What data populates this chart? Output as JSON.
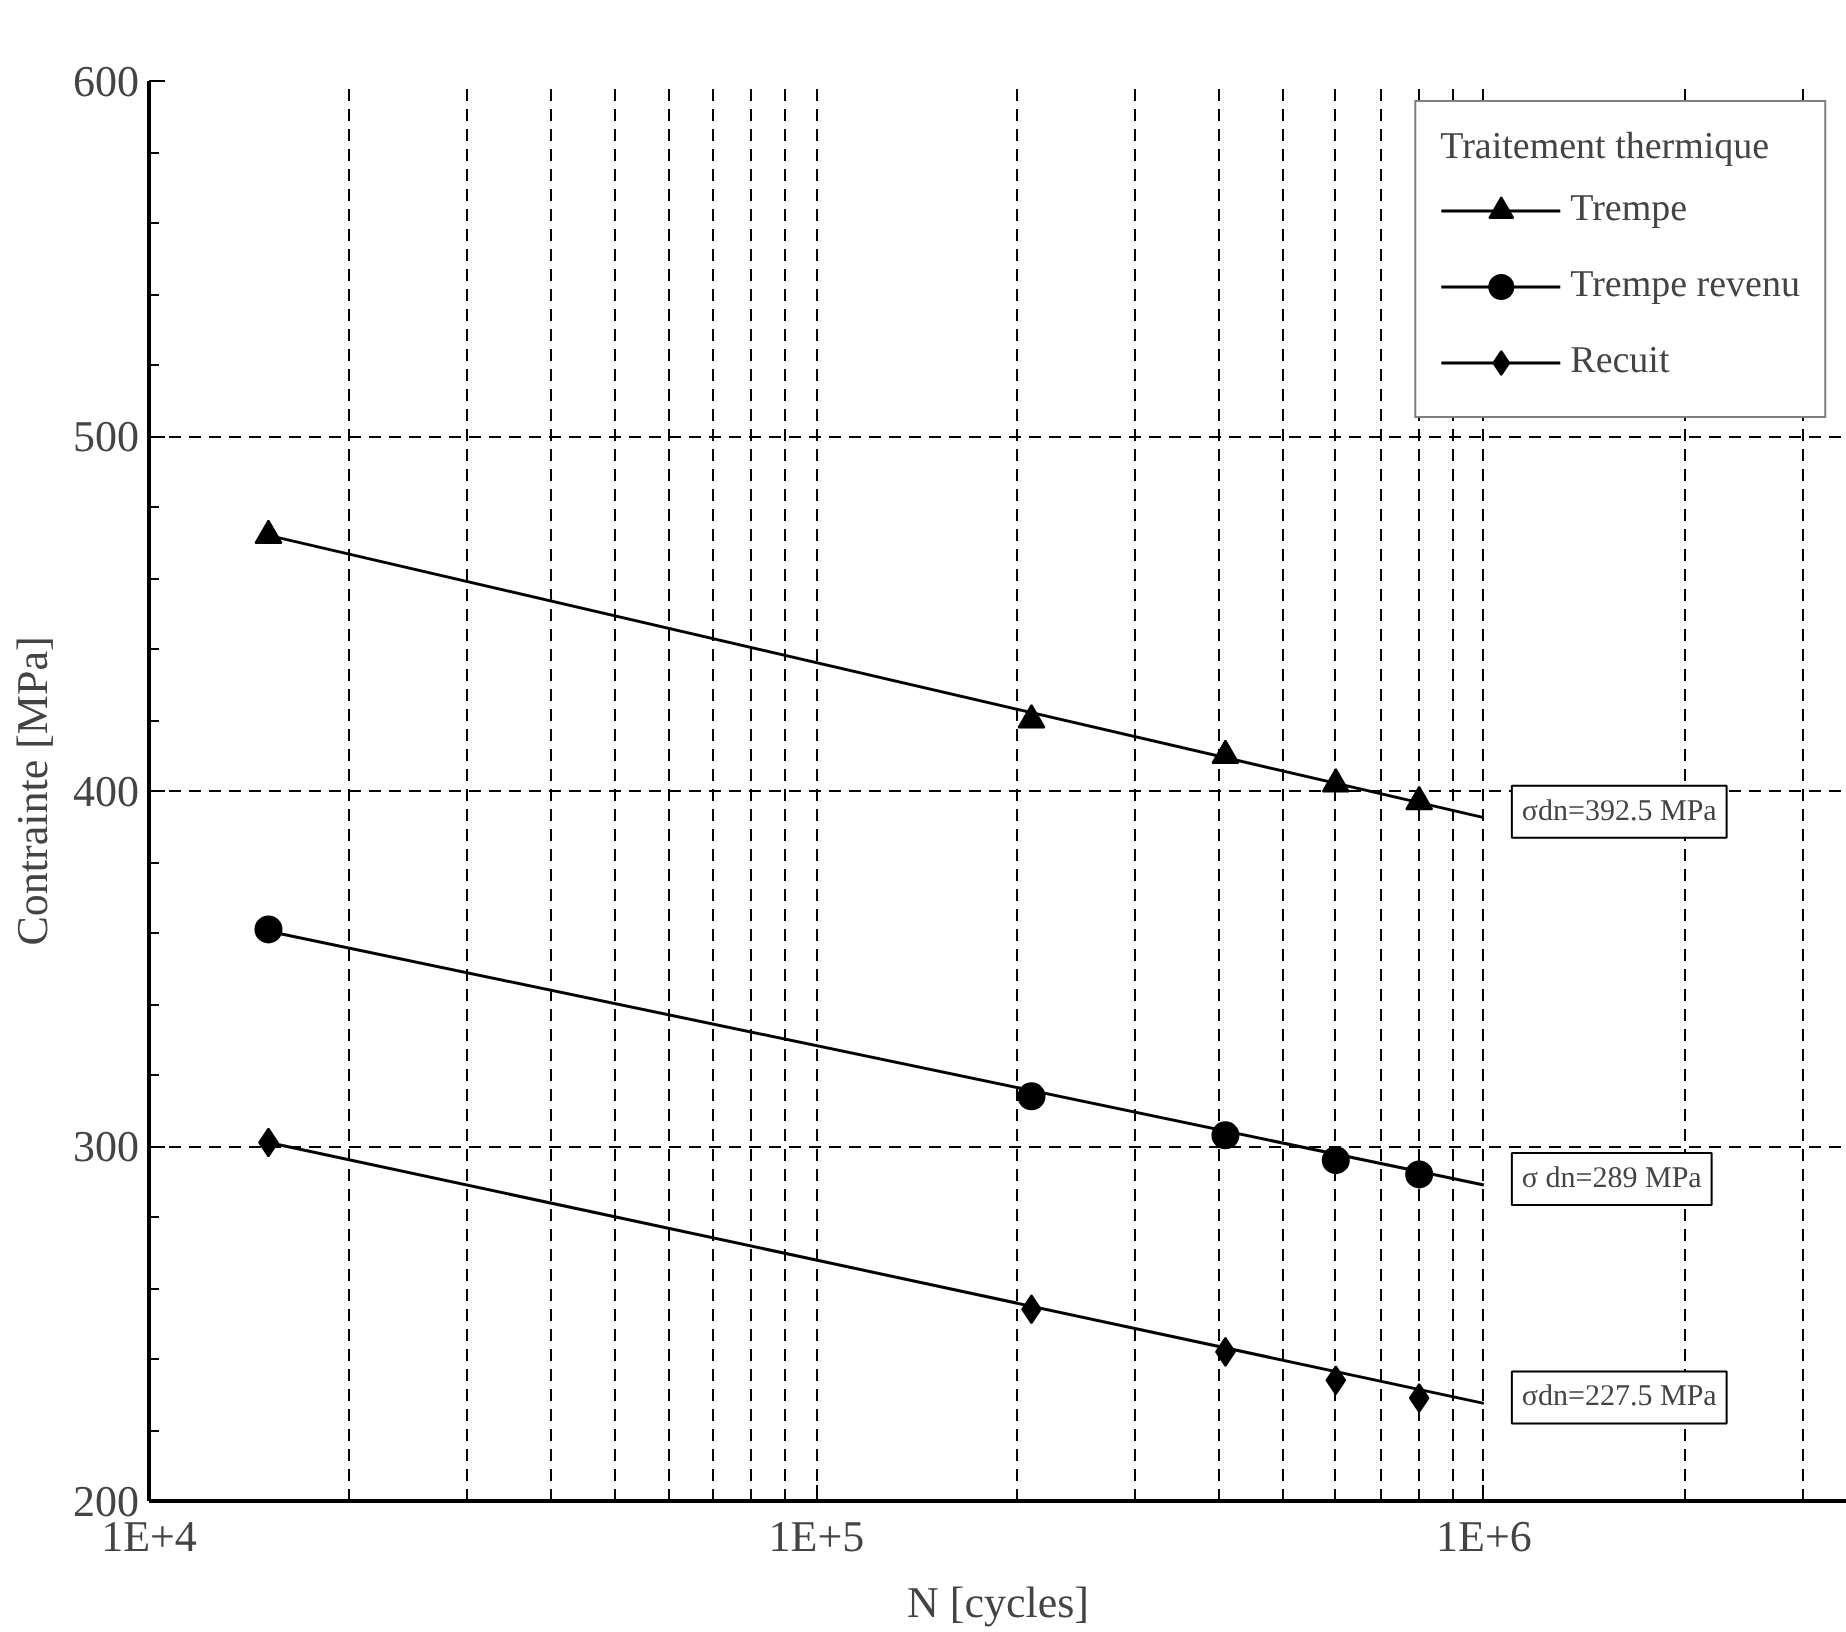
{
  "chart_data": {
    "type": "scatter",
    "xlabel": "N [cycles]",
    "ylabel": "Contrainte [MPa]",
    "legend_title": "Traitement thermique",
    "legend": "top right",
    "log": "x",
    "grid": true,
    "xlim": [
      10000,
      3500000
    ],
    "xticks": [
      {
        "value": 10000,
        "label": "1E+4"
      },
      {
        "value": 100000,
        "label": "1E+5"
      },
      {
        "value": 1000000,
        "label": "1E+6"
      }
    ],
    "ylim": [
      200,
      600
    ],
    "yticks": [
      200,
      300,
      400,
      500,
      600
    ],
    "series": [
      {
        "name": "Trempe",
        "color": "#000000",
        "marker": "triangle",
        "x": [
          15100,
          210000,
          410000,
          600000,
          800000
        ],
        "values": [
          472,
          420,
          410,
          402,
          397
        ]
      },
      {
        "name": "Trempe revenu",
        "color": "#000000",
        "marker": "circle",
        "x": [
          15100,
          210000,
          410000,
          600000,
          800000
        ],
        "values": [
          361,
          314,
          303,
          296,
          292
        ]
      },
      {
        "name": "Recuit",
        "color": "#000000",
        "marker": "diamond",
        "x": [
          15100,
          210000,
          410000,
          600000,
          800000
        ],
        "values": [
          301,
          254,
          242,
          234,
          229
        ]
      },
      {
        "type": "line",
        "color": "#000000",
        "x": [
          15100,
          1000000
        ],
        "values": [
          472,
          392.5
        ]
      },
      {
        "type": "line",
        "color": "#000000",
        "x": [
          15100,
          1000000
        ],
        "values": [
          360.5,
          289
        ]
      },
      {
        "type": "line",
        "color": "#000000",
        "x": [
          15100,
          1000000
        ],
        "values": [
          301,
          227.5
        ]
      }
    ],
    "annotations": [
      "σdn=392.5 MPa",
      "σ dn=289 MPa",
      "σdn=227.5 MPa"
    ]
  }
}
